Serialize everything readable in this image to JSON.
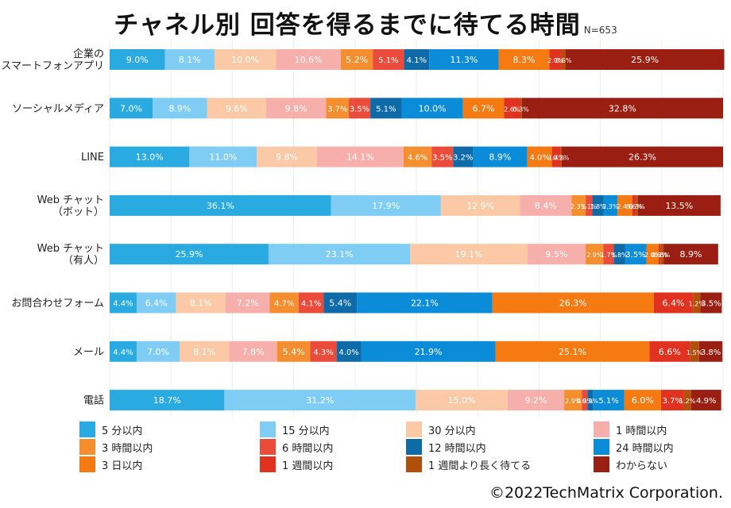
{
  "chart_data": {
    "type": "bar",
    "orientation": "horizontal",
    "stacked": true,
    "title": "チャネル別 回答を得るまでに待てる時間",
    "n_label": "N=653",
    "unit": "%",
    "xlim": [
      0,
      100
    ],
    "categories": [
      [
        "企業の",
        "スマートフォンアプリ"
      ],
      [
        "ソーシャルメディア"
      ],
      [
        "LINE"
      ],
      [
        "Web チャット",
        "（ボット）"
      ],
      [
        "Web チャット",
        "（有人）"
      ],
      [
        "お問合わせフォーム"
      ],
      [
        "メール"
      ],
      [
        "電話"
      ]
    ],
    "series": [
      {
        "name": "5 分以内",
        "color": "#29ABE2",
        "values": [
          9.0,
          7.0,
          13.0,
          36.1,
          25.9,
          4.4,
          4.4,
          18.7
        ]
      },
      {
        "name": "15 分以内",
        "color": "#7FCDF5",
        "values": [
          8.1,
          8.9,
          11.0,
          17.9,
          23.1,
          6.4,
          7.0,
          31.2
        ]
      },
      {
        "name": "30 分以内",
        "color": "#FBC9A6",
        "values": [
          10.0,
          9.6,
          9.8,
          12.9,
          19.1,
          8.1,
          8.1,
          15.0
        ]
      },
      {
        "name": "1 時間以内",
        "color": "#F6AFAB",
        "values": [
          10.6,
          9.8,
          14.1,
          8.4,
          9.5,
          7.2,
          7.8,
          9.2
        ]
      },
      {
        "name": "3 時間以内",
        "color": "#F58E2E",
        "values": [
          5.2,
          3.7,
          4.6,
          2.3,
          2.9,
          4.7,
          5.4,
          2.9
        ]
      },
      {
        "name": "6 時間以内",
        "color": "#EB4B3A",
        "values": [
          5.1,
          3.5,
          3.5,
          1.1,
          1.7,
          4.1,
          4.3,
          0.9
        ]
      },
      {
        "name": "12 時間以内",
        "color": "#0E6BA8",
        "values": [
          4.1,
          5.1,
          3.2,
          1.8,
          1.8,
          5.4,
          4.0,
          0.9
        ]
      },
      {
        "name": "24 時間以内",
        "color": "#0A8CD8",
        "values": [
          11.3,
          10.0,
          8.9,
          2.3,
          3.5,
          22.1,
          21.9,
          5.1
        ]
      },
      {
        "name": "3 日以内",
        "color": "#F57A12",
        "values": [
          8.3,
          6.7,
          4.0,
          2.4,
          2.0,
          26.3,
          25.1,
          6.0
        ]
      },
      {
        "name": "1 週間以内",
        "color": "#E0321E",
        "values": [
          2.0,
          2.6,
          1.4,
          0.6,
          0.3,
          6.4,
          6.6,
          3.7
        ]
      },
      {
        "name": "1 週間より長く待てる",
        "color": "#B0500A",
        "values": [
          0.6,
          0.3,
          0.2,
          0.3,
          0.5,
          1.2,
          1.5,
          1.2
        ]
      },
      {
        "name": "わからない",
        "color": "#9A1F12",
        "values": [
          25.9,
          32.8,
          26.3,
          13.5,
          8.9,
          3.5,
          3.8,
          4.9
        ]
      }
    ]
  },
  "copyright": "©2022TechMatrix Corporation."
}
